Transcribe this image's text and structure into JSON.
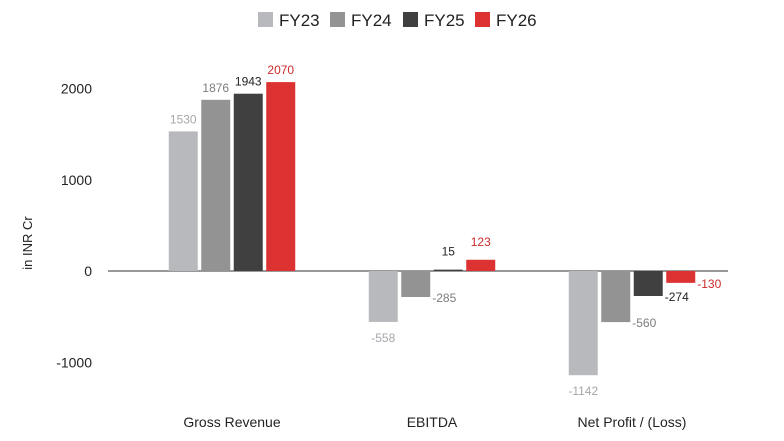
{
  "chart_data": {
    "type": "bar",
    "title": "",
    "xlabel": "",
    "ylabel": "in INR Cr",
    "categories": [
      "Gross Revenue",
      "EBITDA",
      "Net Profit / (Loss)"
    ],
    "ylim": [
      -1200,
      2200
    ],
    "yticks": [
      -1000,
      0,
      1000,
      2000
    ],
    "grid": false,
    "legend_position": "top",
    "series": [
      {
        "name": "FY23",
        "color": "#b8b9bd",
        "label_color": "#a6a7ab",
        "values": [
          1530,
          -558,
          -1142
        ]
      },
      {
        "name": "FY24",
        "color": "#939393",
        "label_color": "#7d7d7d",
        "values": [
          1876,
          -285,
          -560
        ]
      },
      {
        "name": "FY25",
        "color": "#404040",
        "label_color": "#222222",
        "values": [
          1943,
          15,
          -274
        ]
      },
      {
        "name": "FY26",
        "color": "#dc3232",
        "label_color": "#cc2b2b",
        "values": [
          2070,
          123,
          -130
        ]
      }
    ]
  }
}
